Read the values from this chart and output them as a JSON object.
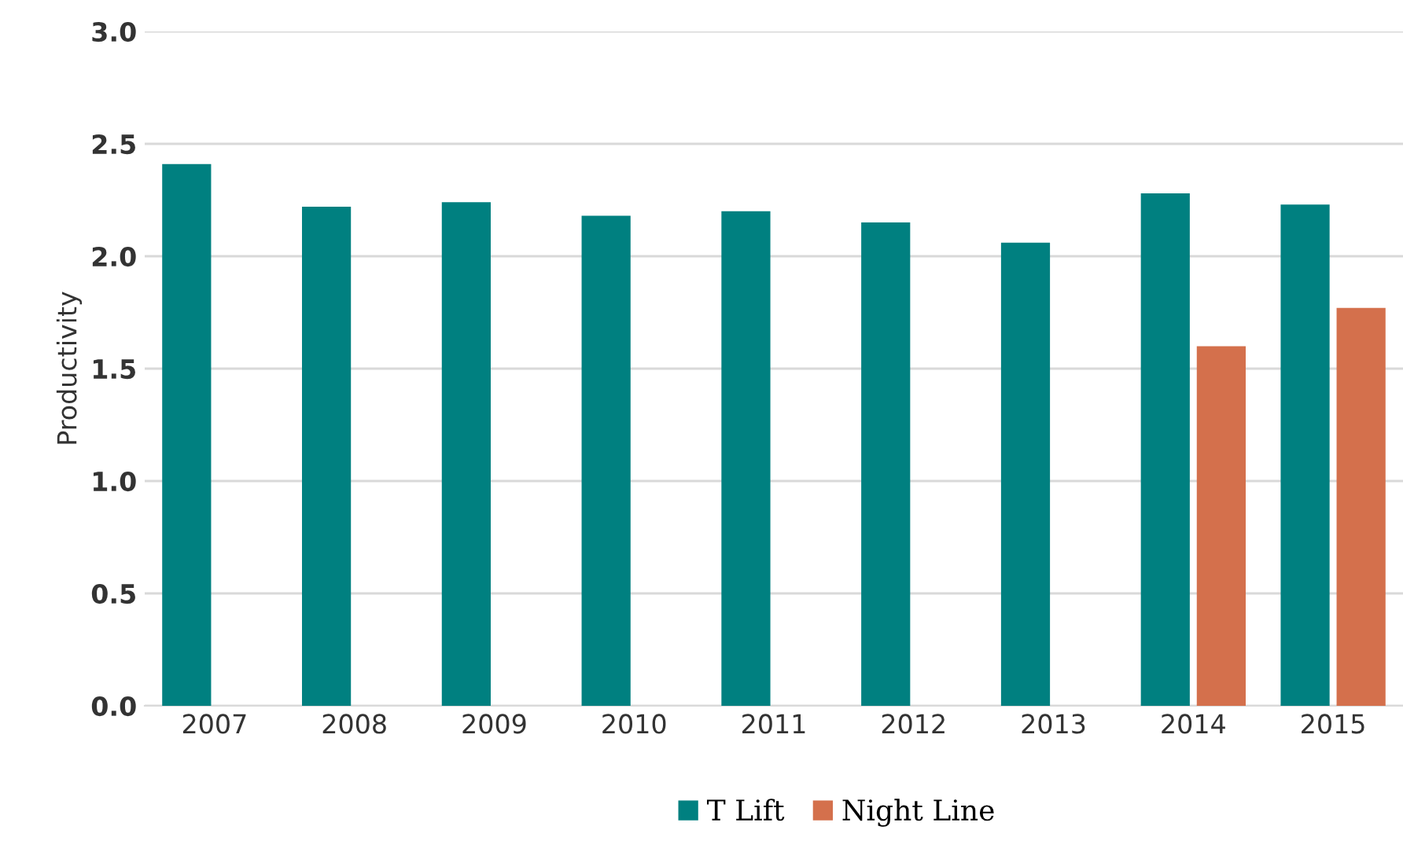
{
  "chart_data": {
    "type": "bar",
    "ylabel": "Productivity",
    "categories": [
      "2007",
      "2008",
      "2009",
      "2010",
      "2011",
      "2012",
      "2013",
      "2014",
      "2015"
    ],
    "series": [
      {
        "name": "T Lift",
        "color": "#008080",
        "values": [
          2.41,
          2.22,
          2.24,
          2.18,
          2.2,
          2.15,
          2.06,
          2.28,
          2.23
        ]
      },
      {
        "name": "Night Line",
        "color": "#d4704c",
        "values": [
          null,
          null,
          null,
          null,
          null,
          null,
          null,
          1.6,
          1.77
        ]
      }
    ],
    "ylim": [
      0,
      3
    ],
    "yticks": [
      {
        "value": 0,
        "label": "0.0"
      },
      {
        "value": 0.5,
        "label": "0.5"
      },
      {
        "value": 1,
        "label": "1.0"
      },
      {
        "value": 1.5,
        "label": "1.5"
      },
      {
        "value": 2,
        "label": "2.0"
      },
      {
        "value": 2.5,
        "label": "2.5"
      },
      {
        "value": 3,
        "label": "3.0"
      }
    ],
    "grid": "y",
    "legend": "bottom"
  }
}
